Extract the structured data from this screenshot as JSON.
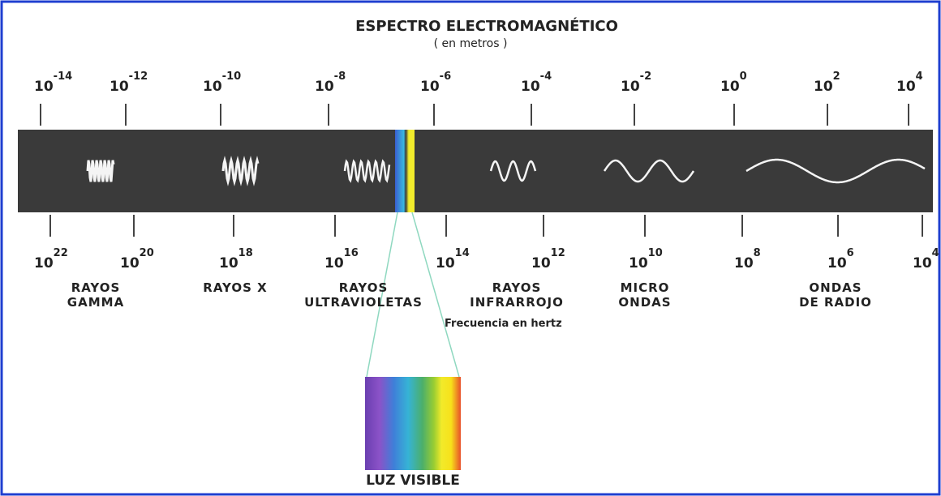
{
  "header": {
    "title": "ESPECTRO ELECTROMAGNÉTICO",
    "subtitle": "( en metros )"
  },
  "wavelength_labels": [
    {
      "base": "10",
      "exponent": "-14"
    },
    {
      "base": "10",
      "exponent": "-12"
    },
    {
      "base": "10",
      "exponent": "-10"
    },
    {
      "base": "10",
      "exponent": "-8"
    },
    {
      "base": "10",
      "exponent": "-6"
    },
    {
      "base": "10",
      "exponent": "-4"
    },
    {
      "base": "10",
      "exponent": "-2"
    },
    {
      "base": "10",
      "exponent": "0"
    },
    {
      "base": "10",
      "exponent": "2"
    },
    {
      "base": "10",
      "exponent": "4"
    }
  ],
  "frequency_labels": [
    {
      "base": "10",
      "exponent": "22"
    },
    {
      "base": "10",
      "exponent": "20"
    },
    {
      "base": "10",
      "exponent": "18"
    },
    {
      "base": "10",
      "exponent": "16"
    },
    {
      "base": "10",
      "exponent": "14"
    },
    {
      "base": "10",
      "exponent": "12"
    },
    {
      "base": "10",
      "exponent": "10"
    },
    {
      "base": "10",
      "exponent": "8"
    },
    {
      "base": "10",
      "exponent": "6"
    },
    {
      "base": "10",
      "exponent": "4"
    }
  ],
  "regions": [
    {
      "lines": [
        "RAYOS",
        "GAMMA"
      ]
    },
    {
      "lines": [
        "RAYOS X"
      ]
    },
    {
      "lines": [
        "RAYOS",
        "ULTRAVIOLETAS"
      ]
    },
    {
      "lines": [
        "RAYOS",
        "INFRARROJO"
      ]
    },
    {
      "lines": [
        "MICRO",
        "ONDAS"
      ]
    },
    {
      "lines": [
        "ONDAS",
        "DE RADIO"
      ]
    }
  ],
  "frequency_caption": "Frecuencia en hertz",
  "visible_label": "LUZ VISIBLE"
}
